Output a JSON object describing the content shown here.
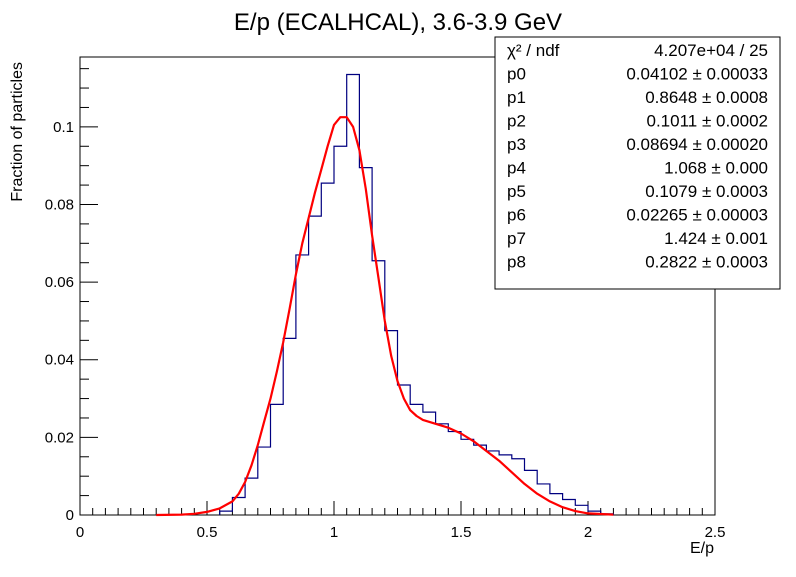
{
  "chart_data": {
    "type": "histogram",
    "title": "E/p (ECALHCAL), 3.6-3.9 GeV",
    "xlabel": "E/p",
    "ylabel": "Fraction of particles",
    "xlim": [
      0,
      2.5
    ],
    "ylim": [
      0,
      0.118
    ],
    "x_ticks": [
      {
        "v": 0,
        "label": "0"
      },
      {
        "v": 0.5,
        "label": "0.5"
      },
      {
        "v": 1,
        "label": "1"
      },
      {
        "v": 1.5,
        "label": "1.5"
      },
      {
        "v": 2,
        "label": "2"
      },
      {
        "v": 2.5,
        "label": "2.5"
      }
    ],
    "y_ticks": [
      {
        "v": 0,
        "label": "0"
      },
      {
        "v": 0.02,
        "label": "0.02"
      },
      {
        "v": 0.04,
        "label": "0.04"
      },
      {
        "v": 0.06,
        "label": "0.06"
      },
      {
        "v": 0.08,
        "label": "0.08"
      },
      {
        "v": 0.1,
        "label": "0.1"
      }
    ],
    "histogram": {
      "color": "#000080",
      "bin_width": 0.05,
      "bins": [
        {
          "x0": 0.55,
          "y": 0.001
        },
        {
          "x0": 0.6,
          "y": 0.0045
        },
        {
          "x0": 0.65,
          "y": 0.0095
        },
        {
          "x0": 0.7,
          "y": 0.0175
        },
        {
          "x0": 0.75,
          "y": 0.0285
        },
        {
          "x0": 0.8,
          "y": 0.0455
        },
        {
          "x0": 0.85,
          "y": 0.067
        },
        {
          "x0": 0.9,
          "y": 0.077
        },
        {
          "x0": 0.95,
          "y": 0.0855
        },
        {
          "x0": 1.0,
          "y": 0.095
        },
        {
          "x0": 1.05,
          "y": 0.1135
        },
        {
          "x0": 1.1,
          "y": 0.0895
        },
        {
          "x0": 1.15,
          "y": 0.0655
        },
        {
          "x0": 1.2,
          "y": 0.0475
        },
        {
          "x0": 1.25,
          "y": 0.0335
        },
        {
          "x0": 1.3,
          "y": 0.0285
        },
        {
          "x0": 1.35,
          "y": 0.0265
        },
        {
          "x0": 1.4,
          "y": 0.0235
        },
        {
          "x0": 1.45,
          "y": 0.0215
        },
        {
          "x0": 1.5,
          "y": 0.0195
        },
        {
          "x0": 1.55,
          "y": 0.018
        },
        {
          "x0": 1.6,
          "y": 0.0165
        },
        {
          "x0": 1.65,
          "y": 0.0155
        },
        {
          "x0": 1.7,
          "y": 0.0145
        },
        {
          "x0": 1.75,
          "y": 0.0115
        },
        {
          "x0": 1.8,
          "y": 0.008
        },
        {
          "x0": 1.85,
          "y": 0.0055
        },
        {
          "x0": 1.9,
          "y": 0.004
        },
        {
          "x0": 1.95,
          "y": 0.0025
        },
        {
          "x0": 2.0,
          "y": 0.001
        },
        {
          "x0": 2.05,
          "y": 0.0003
        }
      ]
    },
    "fit": {
      "color": "#ff0000",
      "x": [
        0.3,
        0.4,
        0.45,
        0.5,
        0.55,
        0.6,
        0.625,
        0.65,
        0.675,
        0.7,
        0.725,
        0.75,
        0.775,
        0.8,
        0.825,
        0.85,
        0.875,
        0.9,
        0.925,
        0.95,
        0.975,
        1.0,
        1.025,
        1.05,
        1.075,
        1.1,
        1.125,
        1.15,
        1.175,
        1.2,
        1.225,
        1.25,
        1.275,
        1.3,
        1.325,
        1.35,
        1.4,
        1.45,
        1.5,
        1.55,
        1.6,
        1.65,
        1.7,
        1.75,
        1.8,
        1.85,
        1.9,
        1.95,
        2.0,
        2.1
      ],
      "y": [
        0.0,
        0.0001,
        0.0003,
        0.0008,
        0.0017,
        0.0035,
        0.0055,
        0.0085,
        0.0128,
        0.018,
        0.024,
        0.03,
        0.037,
        0.0445,
        0.053,
        0.062,
        0.07,
        0.0765,
        0.083,
        0.089,
        0.095,
        0.1005,
        0.1025,
        0.1025,
        0.1,
        0.094,
        0.084,
        0.072,
        0.061,
        0.05,
        0.041,
        0.0345,
        0.03,
        0.027,
        0.0255,
        0.0245,
        0.0235,
        0.0225,
        0.021,
        0.019,
        0.0165,
        0.014,
        0.011,
        0.008,
        0.0055,
        0.0035,
        0.002,
        0.001,
        0.0004,
        0.0001
      ]
    }
  },
  "stats": {
    "rows": [
      {
        "label": "χ² / ndf",
        "value": "4.207e+04 / 25"
      },
      {
        "label": "p0",
        "value": "0.04102 ± 0.00033"
      },
      {
        "label": "p1",
        "value": "0.8648 ± 0.0008"
      },
      {
        "label": "p2",
        "value": "0.1011 ± 0.0002"
      },
      {
        "label": "p3",
        "value": "0.08694 ± 0.00020"
      },
      {
        "label": "p4",
        "value": "1.068 ± 0.000"
      },
      {
        "label": "p5",
        "value": "0.1079 ± 0.0003"
      },
      {
        "label": "p6",
        "value": "0.02265 ± 0.00003"
      },
      {
        "label": "p7",
        "value": "1.424 ± 0.001"
      },
      {
        "label": "p8",
        "value": "0.2822 ± 0.0003"
      }
    ]
  }
}
